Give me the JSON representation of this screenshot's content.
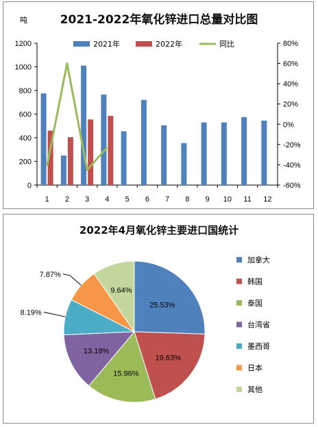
{
  "charts": {
    "top": {
      "title": "2021-2022年氧化锌进口总量对比图",
      "ylabel": "吨"
    },
    "bottom": {
      "title": "2022年4月氧化锌主要进口国统计"
    }
  },
  "chart_data": [
    {
      "type": "bar",
      "title": "2021-2022年氧化锌进口总量对比图",
      "ylabel": "吨",
      "categories": [
        "1",
        "2",
        "3",
        "4",
        "5",
        "6",
        "7",
        "8",
        "9",
        "10",
        "11",
        "12"
      ],
      "series": [
        {
          "name": "2021年",
          "type": "bar",
          "axis": "left",
          "color": "#4F81BD",
          "values": [
            775,
            250,
            1010,
            765,
            455,
            720,
            505,
            355,
            530,
            530,
            575,
            545
          ]
        },
        {
          "name": "2022年",
          "type": "bar",
          "axis": "left",
          "color": "#C0504D",
          "values": [
            460,
            405,
            555,
            585,
            null,
            null,
            null,
            null,
            null,
            null,
            null,
            null
          ]
        },
        {
          "name": "同比",
          "type": "line",
          "axis": "right",
          "color": "#9BBB59",
          "values": [
            -41,
            60,
            -45,
            -23,
            null,
            null,
            null,
            null,
            null,
            null,
            null,
            null
          ]
        }
      ],
      "ylim": [
        0,
        1200
      ],
      "yticks": [
        0,
        200,
        400,
        600,
        800,
        1000,
        1200
      ],
      "y2lim": [
        -60,
        80
      ],
      "y2ticks": [
        -60,
        -40,
        -20,
        0,
        20,
        40,
        60,
        80
      ],
      "y2tick_labels": [
        "-60%",
        "-40%",
        "-20%",
        "0%",
        "20%",
        "40%",
        "60%",
        "80%"
      ],
      "legend": "top",
      "grid": false
    },
    {
      "type": "pie",
      "title": "2022年4月氧化锌主要进口国统计",
      "labels": [
        "加拿大",
        "韩国",
        "泰国",
        "台湾省",
        "墨西哥",
        "日本",
        "其他"
      ],
      "values": [
        25.53,
        19.63,
        15.96,
        13.18,
        8.19,
        7.87,
        9.64
      ],
      "value_labels": [
        "25.53%",
        "19.63%",
        "15.96%",
        "13.18%",
        "8.19%",
        "7.87%",
        "9.64%"
      ],
      "colors": [
        "#4F81BD",
        "#C0504D",
        "#9BBB59",
        "#8064A2",
        "#4BACC6",
        "#F79646",
        "#C3D69B"
      ],
      "legend": "right"
    }
  ]
}
